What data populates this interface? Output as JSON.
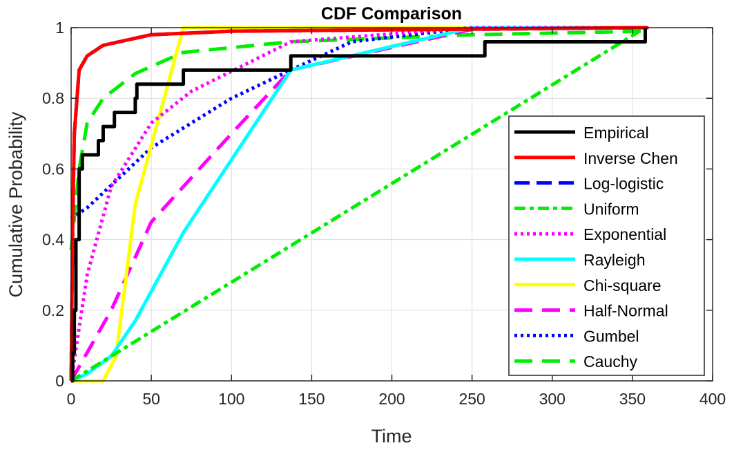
{
  "chart_data": {
    "type": "line",
    "title": "CDF Comparison",
    "xlabel": "Time",
    "ylabel": "Cumulative Probability",
    "xlim": [
      0,
      400
    ],
    "ylim": [
      0,
      1
    ],
    "xticks": [
      "0",
      "50",
      "100",
      "150",
      "200",
      "250",
      "300",
      "350",
      "400"
    ],
    "yticks": [
      "0",
      "0.2",
      "0.4",
      "0.6",
      "0.8",
      "1"
    ],
    "grid": true,
    "legend_position": "bottom-right",
    "series": [
      {
        "name": "Empirical",
        "color": "#000000",
        "dash": "solid",
        "step": true,
        "x": [
          0,
          1,
          2,
          3,
          5,
          7,
          10,
          17,
          20,
          27,
          40,
          41,
          70,
          137,
          258,
          358
        ],
        "y": [
          0,
          0.08,
          0.2,
          0.4,
          0.6,
          0.64,
          0.64,
          0.68,
          0.72,
          0.76,
          0.8,
          0.84,
          0.88,
          0.92,
          0.96,
          1
        ]
      },
      {
        "name": "Inverse Chen",
        "color": "#ff0000",
        "dash": "solid",
        "x": [
          0,
          1,
          2,
          5,
          10,
          20,
          50,
          100,
          360
        ],
        "y": [
          0,
          0.45,
          0.7,
          0.88,
          0.92,
          0.95,
          0.98,
          0.99,
          1
        ]
      },
      {
        "name": "Log-logistic",
        "color": "#0000ff",
        "dash": "dash",
        "x": [
          0,
          1,
          2,
          5,
          10,
          20,
          50,
          100,
          360
        ],
        "y": [
          0,
          0.45,
          0.7,
          0.88,
          0.92,
          0.95,
          0.98,
          0.99,
          1
        ]
      },
      {
        "name": "Uniform",
        "color": "#00ee00",
        "dash": "dashdot",
        "x": [
          0,
          358
        ],
        "y": [
          0,
          1
        ]
      },
      {
        "name": "Exponential",
        "color": "#ff00ff",
        "dash": "dot",
        "x": [
          0,
          10,
          25,
          50,
          75,
          137,
          250,
          360
        ],
        "y": [
          0,
          0.3,
          0.55,
          0.73,
          0.82,
          0.96,
          1,
          1
        ]
      },
      {
        "name": "Rayleigh",
        "color": "#00ffff",
        "dash": "solid",
        "x": [
          0,
          10,
          25,
          40,
          70,
          137,
          250,
          360
        ],
        "y": [
          0,
          0.02,
          0.07,
          0.17,
          0.42,
          0.88,
          1,
          1
        ]
      },
      {
        "name": "Chi-square",
        "color": "#ffff00",
        "dash": "solid",
        "x": [
          0,
          20,
          28,
          40,
          70,
          360
        ],
        "y": [
          0,
          0,
          0.07,
          0.5,
          1,
          1
        ]
      },
      {
        "name": "Half-Normal",
        "color": "#ff00ff",
        "dash": "longdash",
        "x": [
          0,
          25,
          50,
          100,
          137,
          250,
          360
        ],
        "y": [
          0,
          0.2,
          0.45,
          0.7,
          0.88,
          0.995,
          1
        ]
      },
      {
        "name": "Gumbel",
        "color": "#0000ff",
        "dash": "dot",
        "x": [
          0,
          10,
          50,
          100,
          137,
          175,
          250,
          360
        ],
        "y": [
          0.46,
          0.49,
          0.66,
          0.8,
          0.88,
          0.96,
          1,
          1
        ]
      },
      {
        "name": "Cauchy",
        "color": "#00ee00",
        "dash": "longdash",
        "x": [
          0,
          5,
          10,
          20,
          40,
          70,
          137,
          250,
          360
        ],
        "y": [
          0.37,
          0.6,
          0.73,
          0.8,
          0.87,
          0.93,
          0.96,
          0.98,
          0.99
        ]
      }
    ]
  }
}
